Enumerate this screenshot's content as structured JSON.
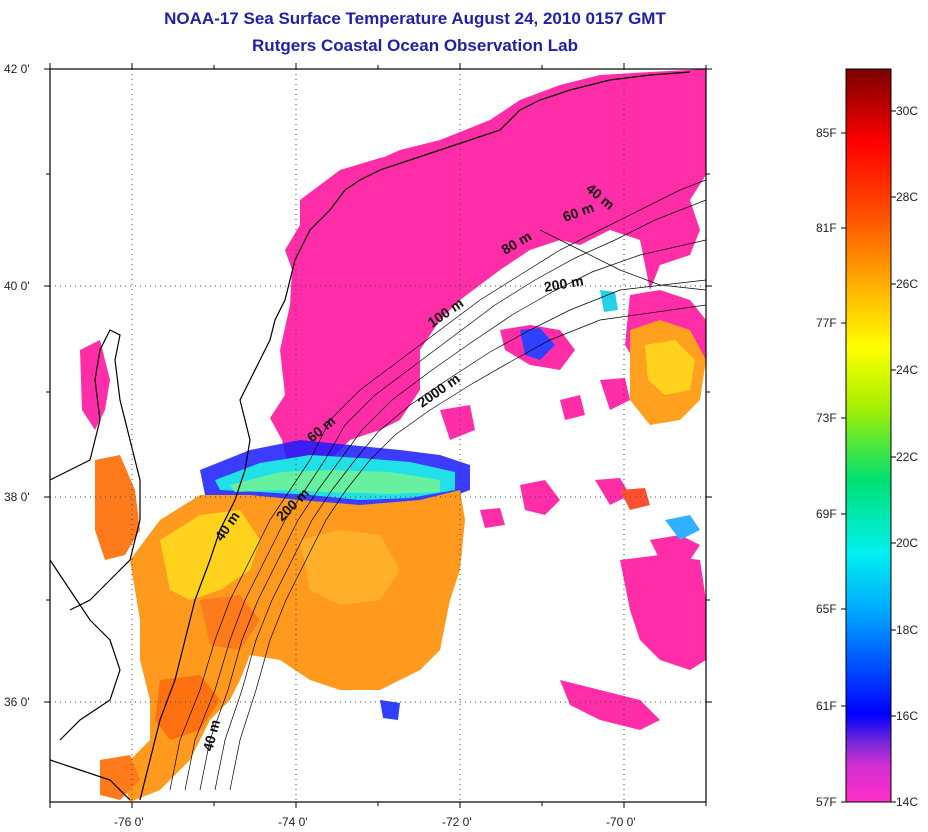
{
  "title": {
    "line1": "NOAA-17 Sea Surface Temperature August 24, 2010 0157 GMT",
    "line2": "Rutgers Coastal Ocean Observation Lab"
  },
  "map": {
    "lon_range": [
      -77,
      -69
    ],
    "lat_range": [
      35,
      42
    ],
    "lon_ticks": [
      {
        "value": -76,
        "label": "-76 0'"
      },
      {
        "value": -74,
        "label": "-74 0'"
      },
      {
        "value": -72,
        "label": "-72 0'"
      },
      {
        "value": -70,
        "label": "-70 0'"
      }
    ],
    "lat_ticks": [
      {
        "value": 42,
        "label": "42 0'"
      },
      {
        "value": 40,
        "label": "40 0'"
      },
      {
        "value": 38,
        "label": "38 0'"
      },
      {
        "value": 36,
        "label": "36 0'"
      }
    ],
    "contour_labels": [
      "40 m",
      "60 m",
      "80 m",
      "200 m",
      "100 m",
      "2000 m",
      "60 m",
      "40 m",
      "200 m",
      "40 m"
    ]
  },
  "colorbar": {
    "range_c": [
      14,
      31
    ],
    "fahrenheit_labels": [
      "85F",
      "81F",
      "77F",
      "73F",
      "69F",
      "65F",
      "61F",
      "57F"
    ],
    "celsius_labels": [
      "30C",
      "28C",
      "26C",
      "24C",
      "22C",
      "20C",
      "18C",
      "16C",
      "14C"
    ]
  },
  "colors": {
    "title": "#1f1fa8",
    "cold_magenta": "#ff2ea8",
    "warm_orange": "#ff8c1a"
  }
}
